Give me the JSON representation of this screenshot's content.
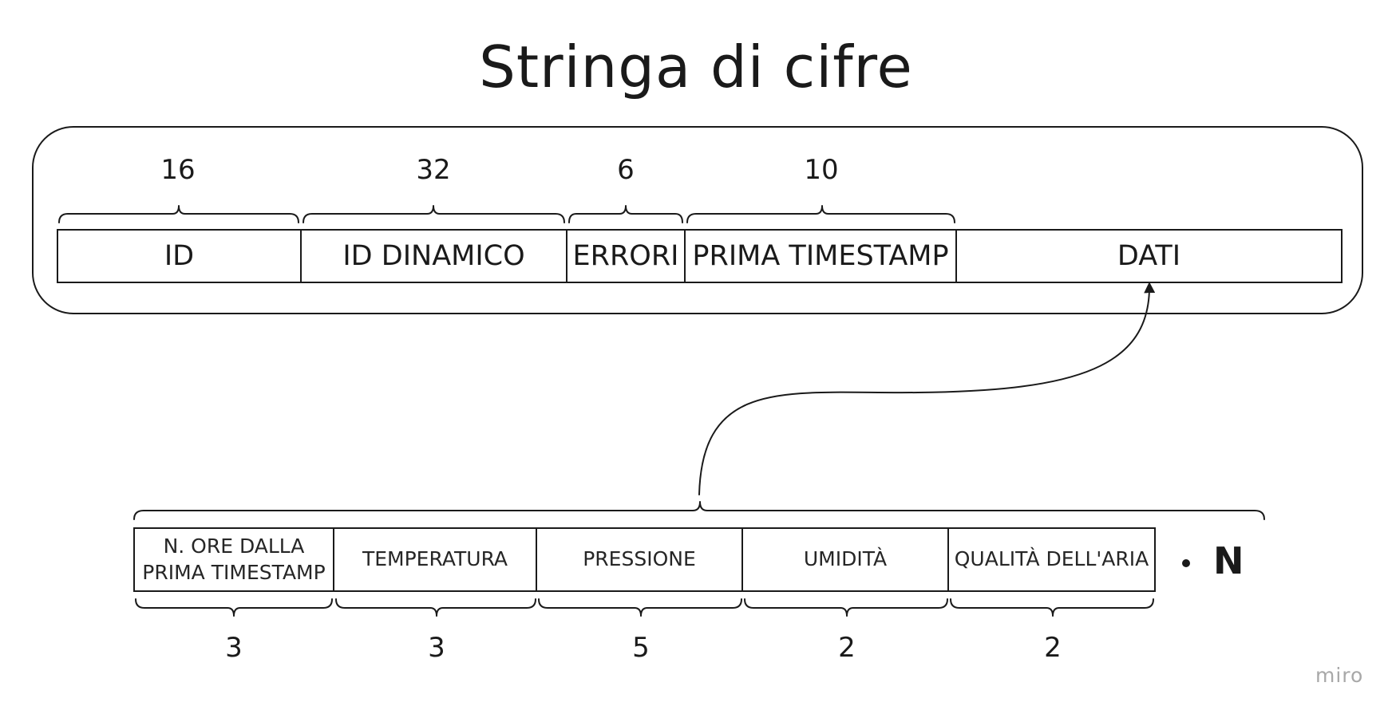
{
  "title": "Stringa di cifre",
  "string_fields": [
    {
      "label": "ID",
      "digits": "16"
    },
    {
      "label": "ID DINAMICO",
      "digits": "32"
    },
    {
      "label": "ERRORI",
      "digits": "6"
    },
    {
      "label": "PRIMA TIMESTAMP",
      "digits": "10"
    },
    {
      "label": "DATI",
      "digits": ""
    }
  ],
  "data_record_fields": [
    {
      "label": "N. ORE DALLA\nPRIMA TIMESTAMP",
      "digits": "3"
    },
    {
      "label": "TEMPERATURA",
      "digits": "3"
    },
    {
      "label": "PRESSIONE",
      "digits": "5"
    },
    {
      "label": "UMIDITÀ",
      "digits": "2"
    },
    {
      "label": "QUALITÀ DELL'ARIA",
      "digits": "2"
    }
  ],
  "multiplier": "N",
  "watermark": "miro"
}
